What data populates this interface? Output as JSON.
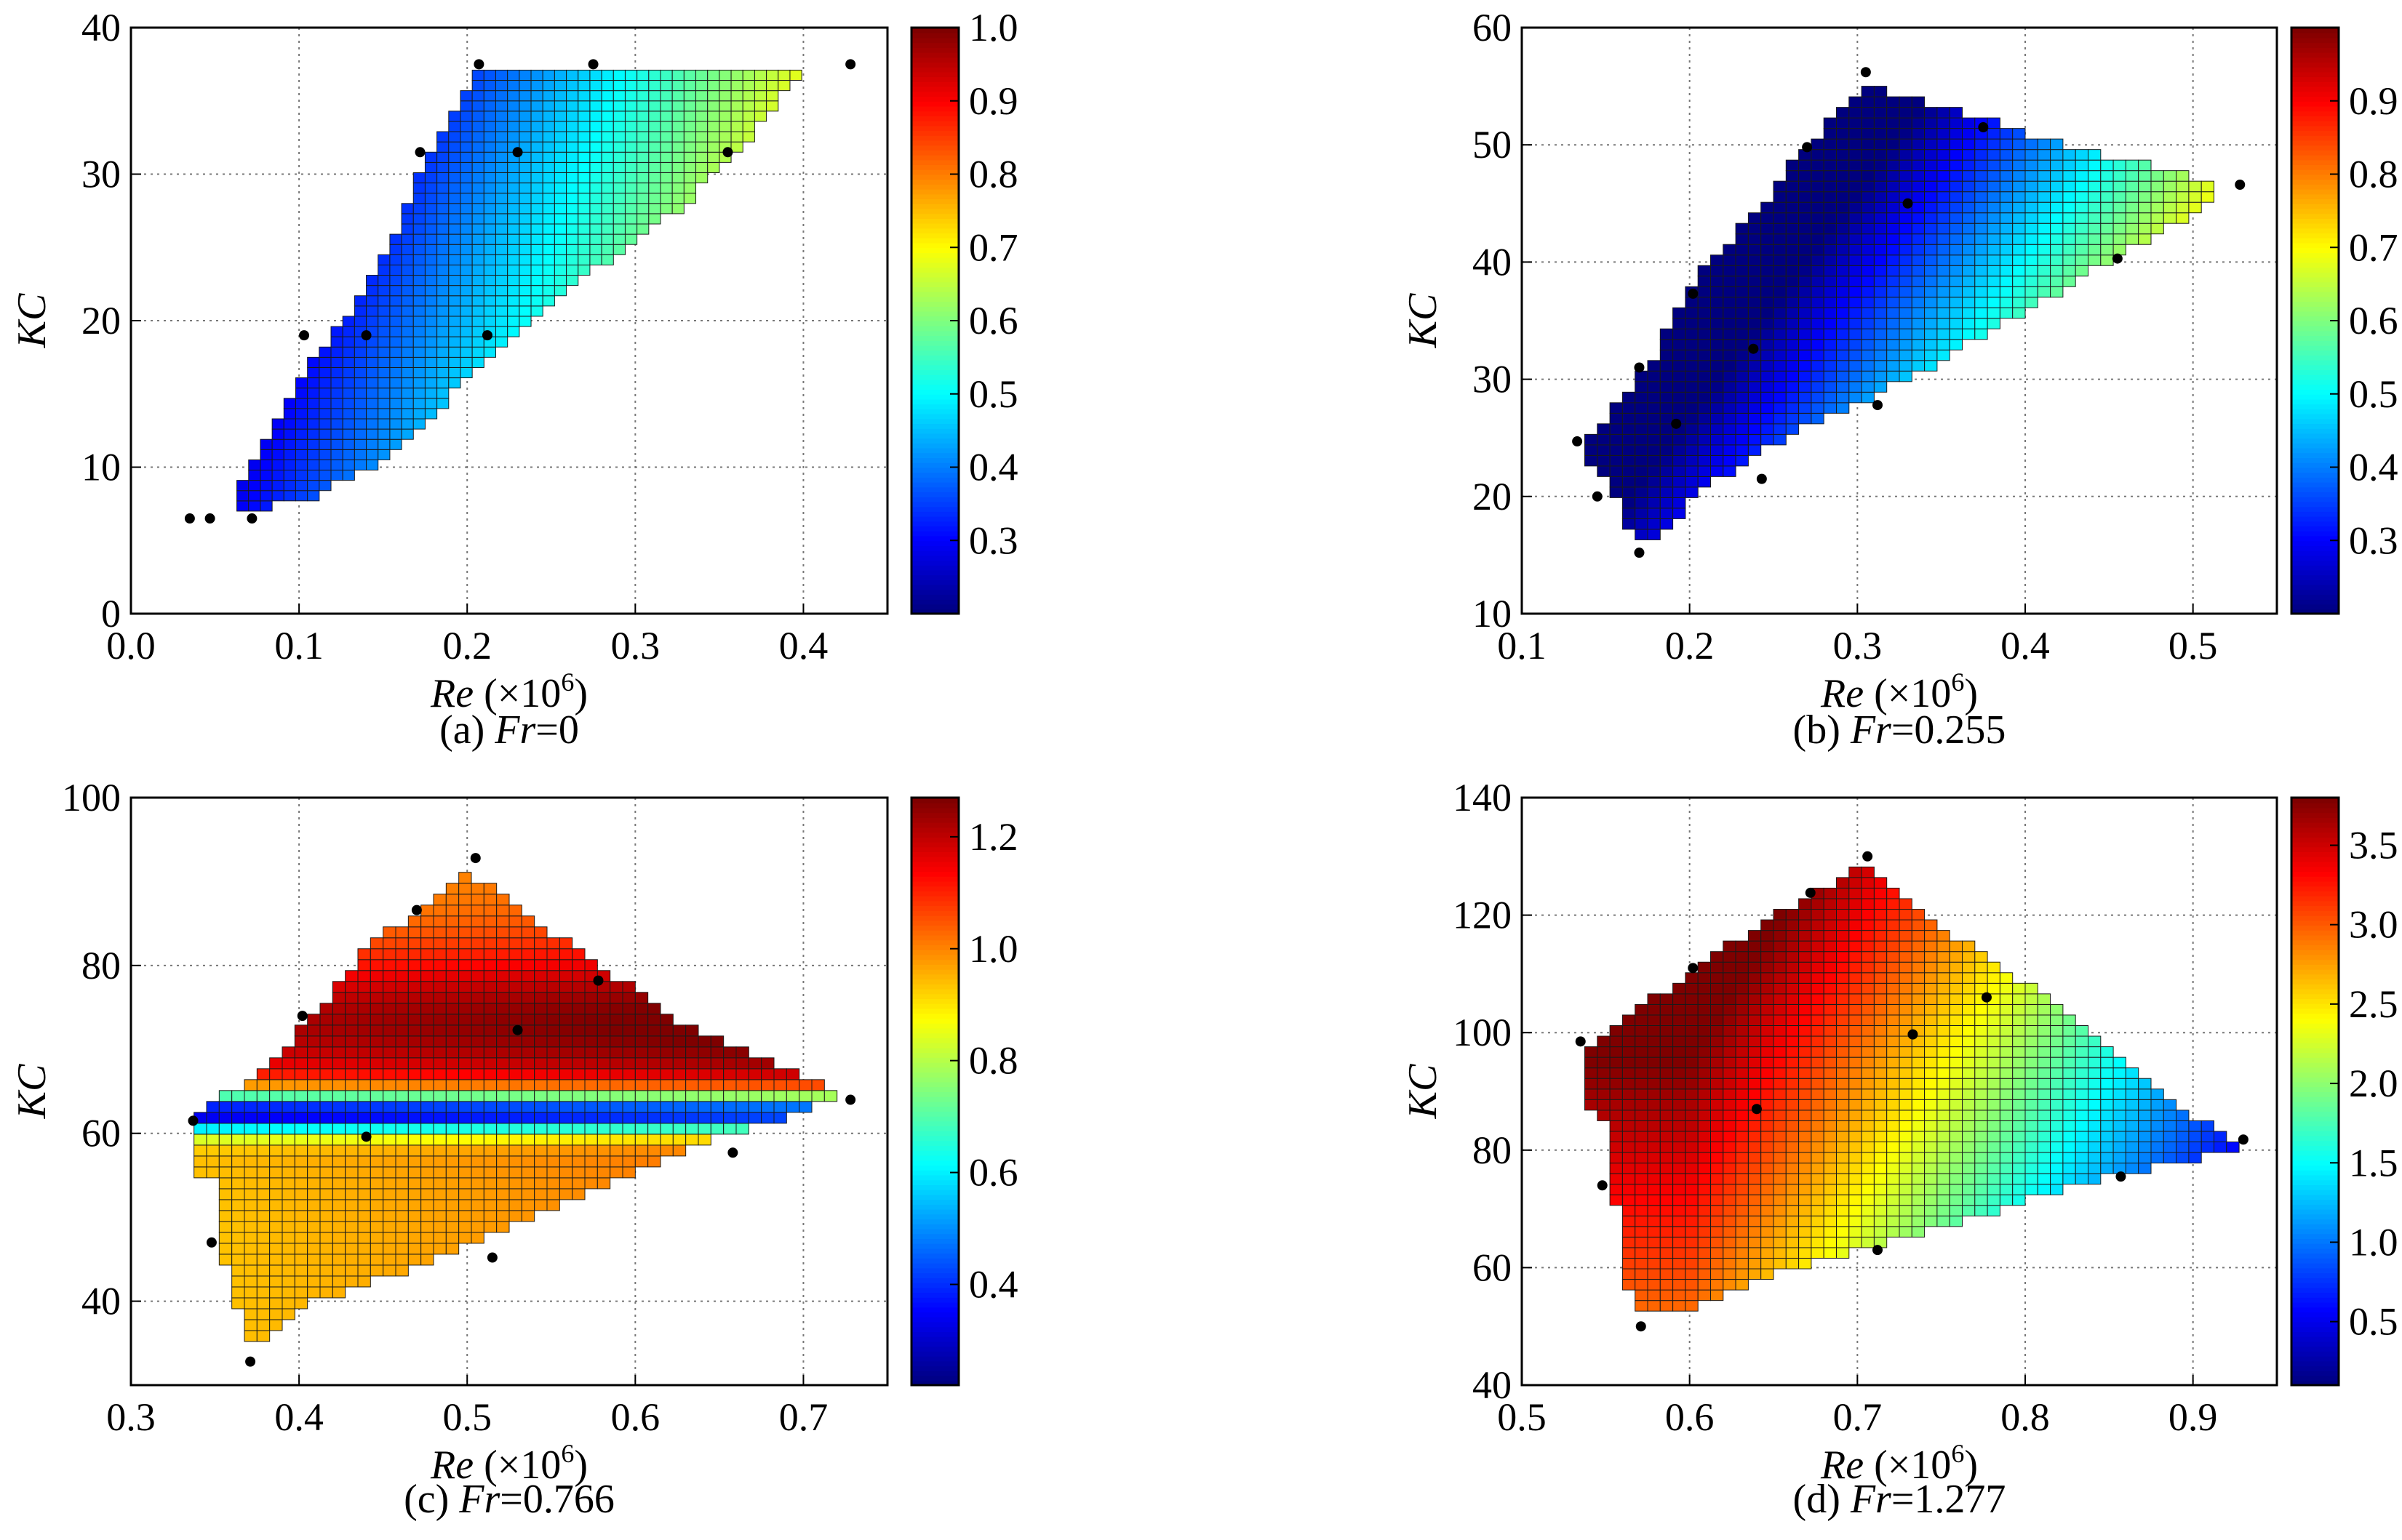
{
  "colors": {
    "colormap": [
      "#00007f",
      "#0000ff",
      "#007fff",
      "#00ffff",
      "#7fff7f",
      "#ffff00",
      "#ff7f00",
      "#ff0000",
      "#7f0000"
    ],
    "grid": "#777777",
    "points": "#000000"
  },
  "chart_data": [
    {
      "type": "heatmap",
      "panel": "a",
      "caption_prefix": "(a) ",
      "caption_var": "Fr",
      "caption_value": "=0",
      "xlabel_var": "Re",
      "xlabel_unit": " (×10",
      "xlabel_exp": "6",
      "xlabel_close": ")",
      "ylabel": "KC",
      "xlim": [
        0.0,
        0.45
      ],
      "ylim": [
        0,
        40
      ],
      "xticks": [
        "0.0",
        "0.1",
        "0.2",
        "0.3",
        "0.4"
      ],
      "xtick_values": [
        0.0,
        0.1,
        0.2,
        0.3,
        0.4
      ],
      "yticks": [
        "0",
        "10",
        "20",
        "30",
        "40"
      ],
      "ytick_values": [
        0,
        10,
        20,
        30,
        40
      ],
      "colorbar_range": [
        0.2,
        1.0
      ],
      "colorbar_ticks": [
        "0.3",
        "0.4",
        "0.5",
        "0.6",
        "0.7",
        "0.8",
        "0.9",
        "1.0"
      ],
      "colorbar_tick_values": [
        0.3,
        0.4,
        0.5,
        0.6,
        0.7,
        0.8,
        0.9,
        1.0
      ],
      "region": [
        [
          0.058,
          7
        ],
        [
          0.095,
          15
        ],
        [
          0.145,
          23
        ],
        [
          0.172,
          30
        ],
        [
          0.205,
          37
        ],
        [
          0.397,
          37
        ],
        [
          0.38,
          34
        ],
        [
          0.33,
          28
        ],
        [
          0.27,
          23
        ],
        [
          0.2,
          16
        ],
        [
          0.16,
          11
        ],
        [
          0.11,
          8
        ],
        [
          0.07,
          7
        ]
      ],
      "grid_cell": [
        0.007,
        0.7
      ],
      "field": "linear",
      "field_coeffs": [
        0.2,
        1.9,
        -0.01,
        0.02
      ],
      "points": [
        [
          0.035,
          6.5
        ],
        [
          0.047,
          6.5
        ],
        [
          0.072,
          6.5
        ],
        [
          0.103,
          19
        ],
        [
          0.14,
          19
        ],
        [
          0.212,
          19
        ],
        [
          0.172,
          31.5
        ],
        [
          0.23,
          31.5
        ],
        [
          0.355,
          31.5
        ],
        [
          0.207,
          37.5
        ],
        [
          0.275,
          37.5
        ],
        [
          0.428,
          37.5
        ]
      ]
    },
    {
      "type": "heatmap",
      "panel": "b",
      "caption_prefix": "(b) ",
      "caption_var": "Fr",
      "caption_value": "=0.255",
      "xlabel_var": "Re",
      "xlabel_unit": " (×10",
      "xlabel_exp": "6",
      "xlabel_close": ")",
      "ylabel": "KC",
      "xlim": [
        0.1,
        0.55
      ],
      "ylim": [
        10,
        60
      ],
      "xticks": [
        "0.1",
        "0.2",
        "0.3",
        "0.4",
        "0.5"
      ],
      "xtick_values": [
        0.1,
        0.2,
        0.3,
        0.4,
        0.5
      ],
      "yticks": [
        "10",
        "20",
        "30",
        "40",
        "50",
        "60"
      ],
      "ytick_values": [
        10,
        20,
        30,
        40,
        50,
        60
      ],
      "colorbar_range": [
        0.2,
        1.0
      ],
      "colorbar_ticks": [
        "0.3",
        "0.4",
        "0.5",
        "0.6",
        "0.7",
        "0.8",
        "0.9"
      ],
      "colorbar_tick_values": [
        0.3,
        0.4,
        0.5,
        0.6,
        0.7,
        0.8,
        0.9
      ],
      "region": [
        [
          0.14,
          23
        ],
        [
          0.14,
          25
        ],
        [
          0.175,
          31
        ],
        [
          0.205,
          39
        ],
        [
          0.245,
          45
        ],
        [
          0.27,
          50
        ],
        [
          0.305,
          55
        ],
        [
          0.33,
          54
        ],
        [
          0.38,
          52
        ],
        [
          0.42,
          50
        ],
        [
          0.48,
          48
        ],
        [
          0.51,
          47
        ],
        [
          0.51,
          45
        ],
        [
          0.45,
          40
        ],
        [
          0.39,
          35
        ],
        [
          0.33,
          30
        ],
        [
          0.27,
          26
        ],
        [
          0.21,
          21
        ],
        [
          0.18,
          16
        ],
        [
          0.165,
          17
        ],
        [
          0.155,
          20
        ]
      ],
      "grid_cell": [
        0.0075,
        0.9
      ],
      "field": "linear",
      "field_coeffs": [
        0.09,
        2.1,
        -0.0135,
        0.0
      ],
      "points": [
        [
          0.133,
          24.7
        ],
        [
          0.145,
          20
        ],
        [
          0.17,
          15.2
        ],
        [
          0.17,
          31
        ],
        [
          0.192,
          26.2
        ],
        [
          0.202,
          37.3
        ],
        [
          0.238,
          32.6
        ],
        [
          0.243,
          21.5
        ],
        [
          0.27,
          49.8
        ],
        [
          0.305,
          56.2
        ],
        [
          0.312,
          27.8
        ],
        [
          0.33,
          45
        ],
        [
          0.375,
          51.5
        ],
        [
          0.455,
          40.3
        ],
        [
          0.528,
          46.6
        ]
      ]
    },
    {
      "type": "heatmap",
      "panel": "c",
      "caption_prefix": "(c) ",
      "caption_var": "Fr",
      "caption_value": "=0.766",
      "xlabel_var": "Re",
      "xlabel_unit": " (×10",
      "xlabel_exp": "6",
      "xlabel_close": ")",
      "ylabel": "KC",
      "xlim": [
        0.3,
        0.75
      ],
      "ylim": [
        30,
        100
      ],
      "xticks": [
        "0.3",
        "0.4",
        "0.5",
        "0.6",
        "0.7"
      ],
      "xtick_values": [
        0.3,
        0.4,
        0.5,
        0.6,
        0.7
      ],
      "yticks": [
        "40",
        "60",
        "80",
        "100"
      ],
      "ytick_values": [
        40,
        60,
        80,
        100
      ],
      "colorbar_range": [
        0.22,
        1.27
      ],
      "colorbar_ticks": [
        "0.4",
        "0.6",
        "0.8",
        "1.0",
        "1.2"
      ],
      "colorbar_tick_values": [
        0.4,
        0.6,
        0.8,
        1.0,
        1.2
      ],
      "region": [
        [
          0.337,
          55
        ],
        [
          0.337,
          62
        ],
        [
          0.36,
          65
        ],
        [
          0.4,
          72
        ],
        [
          0.44,
          82
        ],
        [
          0.5,
          91
        ],
        [
          0.51,
          90
        ],
        [
          0.57,
          81
        ],
        [
          0.63,
          73
        ],
        [
          0.72,
          65
        ],
        [
          0.72,
          64
        ],
        [
          0.63,
          58
        ],
        [
          0.55,
          51
        ],
        [
          0.47,
          44
        ],
        [
          0.41,
          40
        ],
        [
          0.375,
          34
        ],
        [
          0.37,
          35
        ],
        [
          0.355,
          45
        ],
        [
          0.35,
          55
        ]
      ],
      "grid_cell": [
        0.0075,
        1.3
      ],
      "field": "banded",
      "field_coeffs": [
        0.95,
        0.25,
        -0.7,
        62.5
      ],
      "points": [
        [
          0.337,
          61.5
        ],
        [
          0.348,
          47
        ],
        [
          0.371,
          32.8
        ],
        [
          0.402,
          74
        ],
        [
          0.44,
          59.6
        ],
        [
          0.47,
          86.6
        ],
        [
          0.505,
          92.8
        ],
        [
          0.515,
          45.2
        ],
        [
          0.53,
          72.3
        ],
        [
          0.578,
          78.2
        ],
        [
          0.658,
          57.7
        ],
        [
          0.728,
          64
        ]
      ]
    },
    {
      "type": "heatmap",
      "panel": "d",
      "caption_prefix": "(d) ",
      "caption_var": "Fr",
      "caption_value": "=1.277",
      "xlabel_var": "Re",
      "xlabel_unit": " (×10",
      "xlabel_exp": "6",
      "xlabel_close": ")",
      "ylabel": "KC",
      "xlim": [
        0.5,
        0.95
      ],
      "ylim": [
        40,
        140
      ],
      "xticks": [
        "0.5",
        "0.6",
        "0.7",
        "0.8",
        "0.9"
      ],
      "xtick_values": [
        0.5,
        0.6,
        0.7,
        0.8,
        0.9
      ],
      "yticks": [
        "40",
        "60",
        "80",
        "100",
        "120",
        "140"
      ],
      "ytick_values": [
        40,
        60,
        80,
        100,
        120,
        140
      ],
      "colorbar_range": [
        0.1,
        3.8
      ],
      "colorbar_ticks": [
        "0.5",
        "1.0",
        "1.5",
        "2.0",
        "2.5",
        "3.0",
        "3.5"
      ],
      "colorbar_tick_values": [
        0.5,
        1.0,
        1.5,
        2.0,
        2.5,
        3.0,
        3.5
      ],
      "region": [
        [
          0.54,
          87
        ],
        [
          0.54,
          98
        ],
        [
          0.555,
          101
        ],
        [
          0.59,
          108
        ],
        [
          0.64,
          118
        ],
        [
          0.7,
          128
        ],
        [
          0.71,
          127
        ],
        [
          0.76,
          116
        ],
        [
          0.83,
          103
        ],
        [
          0.88,
          90
        ],
        [
          0.91,
          84
        ],
        [
          0.925,
          82
        ],
        [
          0.925,
          80
        ],
        [
          0.83,
          74
        ],
        [
          0.74,
          66
        ],
        [
          0.66,
          60
        ],
        [
          0.59,
          52
        ],
        [
          0.57,
          52
        ],
        [
          0.56,
          60
        ],
        [
          0.555,
          75
        ],
        [
          0.548,
          87
        ]
      ],
      "grid_cell": [
        0.0075,
        1.8
      ],
      "field": "linear",
      "field_coeffs": [
        3.6,
        0.0,
        -10.5,
        0.018
      ],
      "points": [
        [
          0.535,
          98.5
        ],
        [
          0.548,
          74
        ],
        [
          0.571,
          50
        ],
        [
          0.602,
          111
        ],
        [
          0.64,
          87
        ],
        [
          0.672,
          123.8
        ],
        [
          0.706,
          130
        ],
        [
          0.712,
          63
        ],
        [
          0.733,
          99.7
        ],
        [
          0.777,
          106
        ],
        [
          0.857,
          75.5
        ],
        [
          0.93,
          81.8
        ]
      ]
    }
  ]
}
